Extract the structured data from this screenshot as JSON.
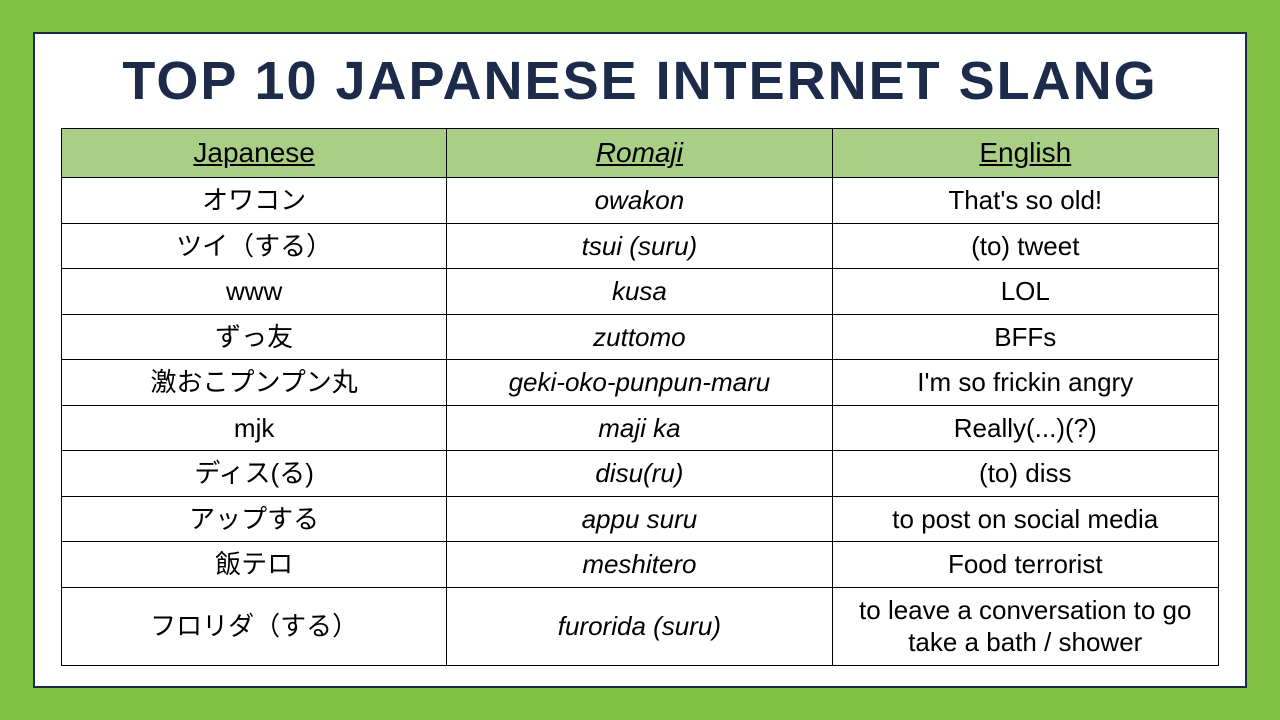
{
  "title": "TOP 10 JAPANESE INTERNET SLANG",
  "columns": {
    "japanese": "Japanese",
    "romaji": "Romaji",
    "english": "English"
  },
  "rows": [
    {
      "japanese": "オワコン",
      "romaji": "owakon",
      "english": "That's so old!"
    },
    {
      "japanese": "ツイ（する）",
      "romaji": "tsui (suru)",
      "english": "(to) tweet"
    },
    {
      "japanese": "www",
      "romaji": "kusa",
      "english": "LOL"
    },
    {
      "japanese": "ずっ友",
      "romaji": "zuttomo",
      "english": "BFFs"
    },
    {
      "japanese": "激おこプンプン丸",
      "romaji": "geki-oko-punpun-maru",
      "english": "I'm so frickin angry"
    },
    {
      "japanese": "mjk",
      "romaji": "maji ka",
      "english": "Really(...)(?)"
    },
    {
      "japanese": "ディス(る)",
      "romaji": "disu(ru)",
      "english": "(to) diss"
    },
    {
      "japanese": "アップする",
      "romaji": "appu suru",
      "english": "to post on social media"
    },
    {
      "japanese": "飯テロ",
      "romaji": "meshitero",
      "english": "Food terrorist"
    },
    {
      "japanese": "フロリダ（する）",
      "romaji": "furorida (suru)",
      "english": "to leave a conversation to go take a bath / shower"
    }
  ],
  "style": {
    "outer_background": "#80c342",
    "card_background": "#ffffff",
    "card_border_color": "#1c2b4a",
    "title_color": "#1c2b4a",
    "title_fontsize": 54,
    "header_background": "#a9cf87",
    "cell_border_color": "#000000",
    "cell_fontsize": 26,
    "header_fontsize": 28,
    "romaji_italic": true,
    "header_underline": true,
    "column_widths_pct": [
      33.3,
      33.3,
      33.4
    ]
  }
}
